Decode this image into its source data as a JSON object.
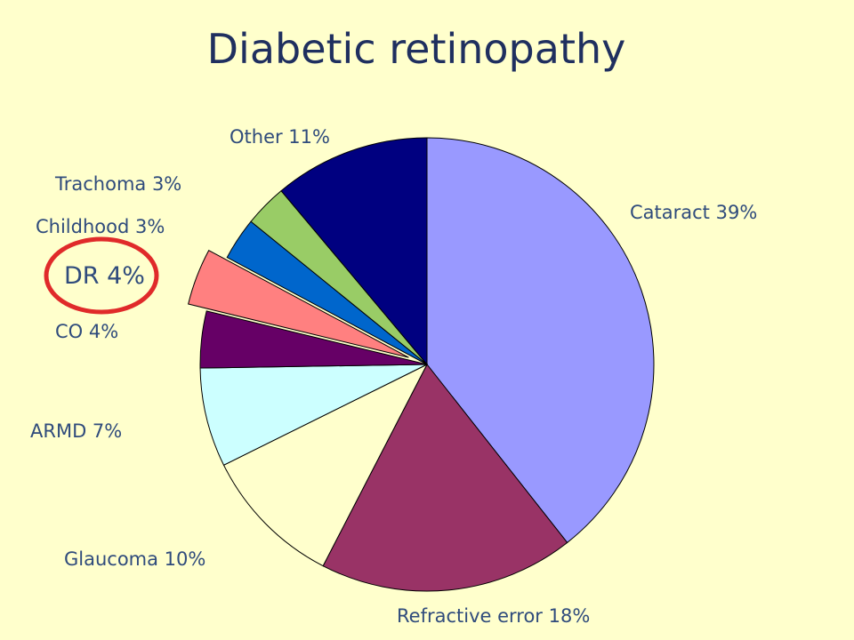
{
  "title": "Diabetic retinopathy",
  "chart_data": {
    "type": "pie",
    "title": "Diabetic retinopathy",
    "start": "12 o'clock",
    "direction": "clockwise",
    "slices": [
      {
        "label": "Cataract 39%",
        "name": "Cataract",
        "value": 39,
        "color": "#9999ff"
      },
      {
        "label": "Refractive error 18%",
        "name": "Refractive error",
        "value": 18,
        "color": "#993366"
      },
      {
        "label": "Glaucoma 10%",
        "name": "Glaucoma",
        "value": 10,
        "color": "#ffffcc"
      },
      {
        "label": "ARMD 7%",
        "name": "ARMD",
        "value": 7,
        "color": "#ccffff"
      },
      {
        "label": "CO 4%",
        "name": "CO",
        "value": 4,
        "color": "#660066"
      },
      {
        "label": "DR 4%",
        "name": "DR",
        "value": 4,
        "color": "#ff8080",
        "exploded": true,
        "highlighted": true,
        "highlight_color": "#e02a2a"
      },
      {
        "label": "Childhood 3%",
        "name": "Childhood",
        "value": 3,
        "color": "#0066cc"
      },
      {
        "label": "Trachoma 3%",
        "name": "Trachoma",
        "value": 3,
        "color": "#99cc66"
      },
      {
        "label": "Other 11%",
        "name": "Other",
        "value": 11,
        "color": "#000080"
      }
    ]
  }
}
